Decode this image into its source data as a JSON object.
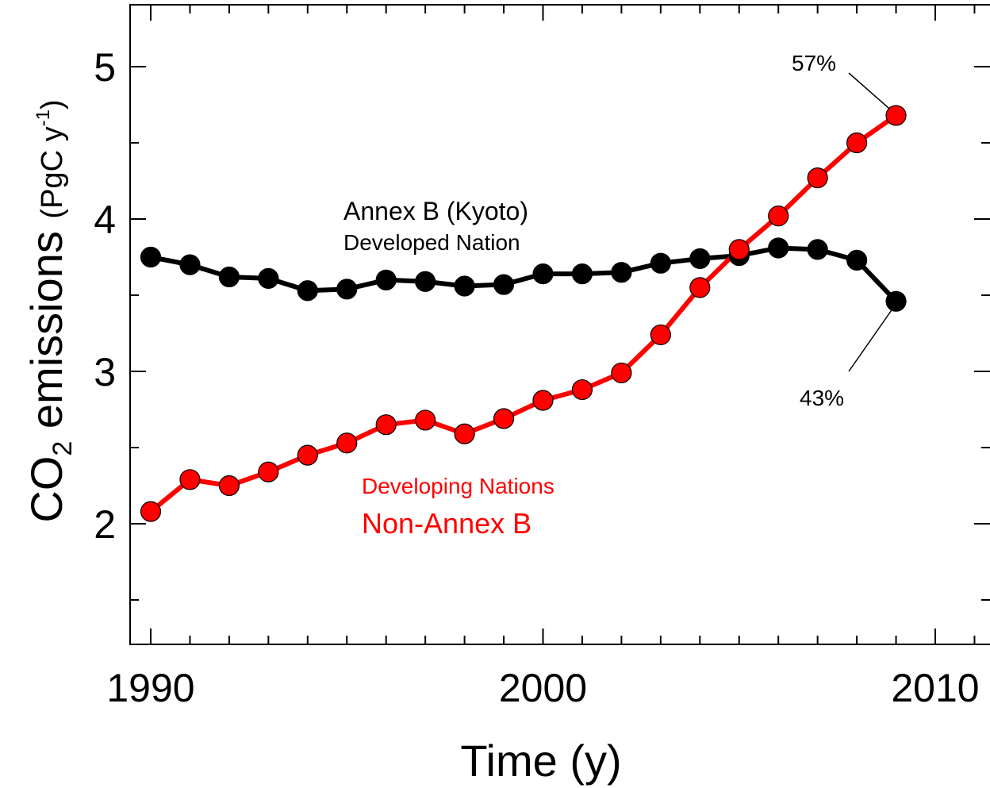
{
  "chart_data": {
    "type": "line",
    "xlabel": "Time (y)",
    "ylabel": {
      "prefix": "CO",
      "subscript": "2",
      "main": " emissions ",
      "unit": "(PgC y",
      "unit_sup": "-1",
      "unit_close": ")"
    },
    "xlim": [
      1990,
      2012
    ],
    "ylim": [
      1.25,
      5.4
    ],
    "x_ticks": [
      1990,
      2000,
      2010
    ],
    "y_ticks": [
      2,
      3,
      4,
      5
    ],
    "x": [
      1990,
      1991,
      1992,
      1993,
      1994,
      1995,
      1996,
      1997,
      1998,
      1999,
      2000,
      2001,
      2002,
      2003,
      2004,
      2005,
      2006,
      2007,
      2008,
      2009
    ],
    "series": [
      {
        "name": "Annex B (Kyoto) Developed Nation",
        "color": "#000000",
        "values": [
          3.75,
          3.7,
          3.62,
          3.61,
          3.53,
          3.54,
          3.6,
          3.59,
          3.56,
          3.57,
          3.64,
          3.64,
          3.65,
          3.71,
          3.74,
          3.76,
          3.81,
          3.8,
          3.73,
          3.46
        ]
      },
      {
        "name": "Developing Nations Non-Annex B",
        "color": "#ff0000",
        "values": [
          2.08,
          2.29,
          2.25,
          2.34,
          2.45,
          2.53,
          2.65,
          2.68,
          2.59,
          2.69,
          2.81,
          2.88,
          2.99,
          3.24,
          3.55,
          3.8,
          4.02,
          4.27,
          4.5,
          4.68
        ]
      }
    ],
    "annotations": {
      "annex_line1": "Annex B (Kyoto)",
      "annex_line2": "Developed Nation",
      "nonannex_line1": "Developing Nations",
      "nonannex_line2": "Non-Annex B",
      "pct_nonannex": "57%",
      "pct_annex": "43%"
    },
    "grid": false
  }
}
